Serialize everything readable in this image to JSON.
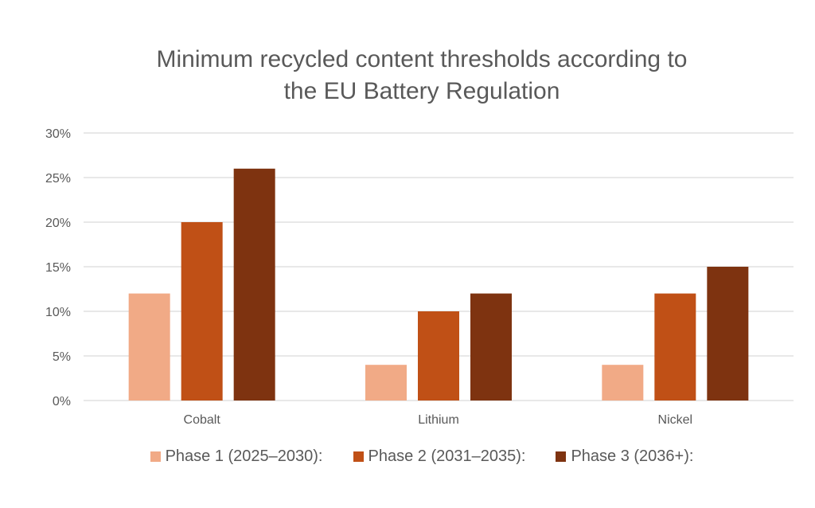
{
  "chart_data": {
    "type": "bar",
    "title": "Minimum recycled content thresholds according to the EU Battery Regulation",
    "title_lines": [
      "Minimum recycled content thresholds according to",
      "the EU Battery Regulation"
    ],
    "categories": [
      "Cobalt",
      "Lithium",
      "Nickel"
    ],
    "series": [
      {
        "name": "Phase 1 (2025–2030):",
        "color": "#F1AA86",
        "values": [
          12,
          4,
          4
        ]
      },
      {
        "name": "Phase 2 (2031–2035):",
        "color": "#C05016",
        "values": [
          20,
          10,
          12
        ]
      },
      {
        "name": "Phase 3 (2036+):",
        "color": "#7E3310",
        "values": [
          26,
          12,
          15
        ]
      }
    ],
    "xlabel": "",
    "ylabel": "",
    "ylim": [
      0,
      30
    ],
    "yticks": [
      0,
      5,
      10,
      15,
      20,
      25,
      30
    ],
    "ytick_labels": [
      "0%",
      "5%",
      "10%",
      "15%",
      "20%",
      "25%",
      "30%"
    ],
    "unit": "%",
    "grid": true,
    "legend_position": "bottom"
  }
}
